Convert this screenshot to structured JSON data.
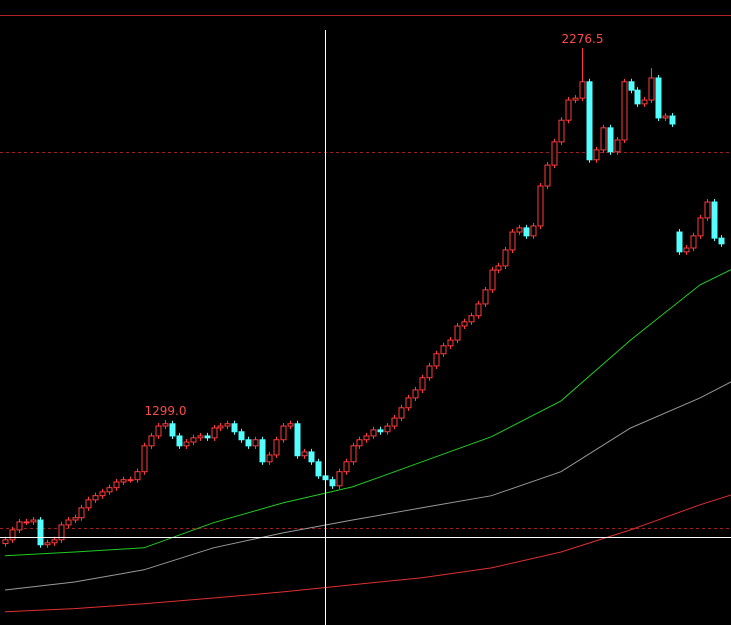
{
  "chart_data": {
    "type": "candlestick",
    "ylim": [
      760,
      2403
    ],
    "up_color": "#ff3c3c",
    "down_color": "#54ffff",
    "label_color": "#ff4a4a",
    "open": [
      974,
      984,
      1010,
      1031,
      1031,
      1036,
      971,
      976,
      984,
      1023,
      1036,
      1042,
      1068,
      1089,
      1100,
      1110,
      1121,
      1136,
      1142,
      1142,
      1163,
      1231,
      1257,
      1283,
      1289,
      1257,
      1231,
      1241,
      1252,
      1257,
      1252,
      1278,
      1283,
      1289,
      1268,
      1247,
      1231,
      1247,
      1189,
      1207,
      1247,
      1283,
      1289,
      1205,
      1215,
      1189,
      1152,
      1142,
      1126,
      1163,
      1189,
      1231,
      1247,
      1257,
      1273,
      1268,
      1283,
      1304,
      1331,
      1357,
      1378,
      1410,
      1441,
      1473,
      1494,
      1509,
      1546,
      1557,
      1573,
      1604,
      1641,
      1693,
      1704,
      1746,
      1793,
      1804,
      1783,
      1809,
      1914,
      1969,
      2030,
      2087,
      2140,
      2145,
      2188,
      1983,
      2009,
      2067,
      2004,
      2035,
      2188,
      2166,
      2130,
      2140,
      2198,
      2093,
      2098,
      1793,
      1741,
      1751,
      1783,
      1830,
      1872,
      1777
    ],
    "high": [
      992,
      1018,
      1039,
      1039,
      1044,
      1044,
      984,
      992,
      1031,
      1044,
      1050,
      1076,
      1097,
      1108,
      1118,
      1129,
      1144,
      1150,
      1150,
      1171,
      1239,
      1265,
      1291,
      1299,
      1297,
      1265,
      1249,
      1260,
      1265,
      1265,
      1286,
      1291,
      1297,
      1297,
      1276,
      1255,
      1255,
      1255,
      1215,
      1255,
      1291,
      1297,
      1297,
      1223,
      1223,
      1197,
      1160,
      1150,
      1171,
      1197,
      1239,
      1255,
      1265,
      1281,
      1281,
      1291,
      1312,
      1339,
      1365,
      1386,
      1418,
      1449,
      1481,
      1502,
      1517,
      1554,
      1565,
      1581,
      1612,
      1649,
      1701,
      1712,
      1754,
      1801,
      1812,
      1812,
      1817,
      1922,
      1977,
      2038,
      2095,
      2148,
      2153,
      2276.5,
      2196,
      2017,
      2075,
      2075,
      2043,
      2196,
      2196,
      2174,
      2148,
      2224,
      2206,
      2106,
      2106,
      1801,
      1759,
      1791,
      1838,
      1880,
      1880,
      1785
    ],
    "low": [
      966,
      976,
      1002,
      1023,
      1023,
      963,
      963,
      968,
      976,
      1015,
      1028,
      1034,
      1060,
      1081,
      1092,
      1102,
      1113,
      1128,
      1134,
      1134,
      1155,
      1223,
      1249,
      1275,
      1249,
      1223,
      1223,
      1233,
      1244,
      1244,
      1244,
      1270,
      1275,
      1260,
      1239,
      1223,
      1223,
      1181,
      1181,
      1199,
      1239,
      1275,
      1197,
      1197,
      1181,
      1144,
      1134,
      1118,
      1118,
      1155,
      1181,
      1223,
      1239,
      1249,
      1260,
      1260,
      1275,
      1296,
      1323,
      1349,
      1370,
      1402,
      1433,
      1465,
      1486,
      1501,
      1538,
      1549,
      1565,
      1596,
      1633,
      1685,
      1696,
      1738,
      1785,
      1775,
      1775,
      1801,
      1906,
      1961,
      2022,
      2079,
      2132,
      2137,
      1975,
      1975,
      2001,
      1996,
      1996,
      2027,
      2158,
      2122,
      2122,
      2132,
      2085,
      2085,
      2069,
      1733,
      1733,
      1743,
      1775,
      1822,
      1769,
      1754
    ],
    "close": [
      984,
      1010,
      1031,
      1031,
      1036,
      971,
      976,
      984,
      1023,
      1036,
      1042,
      1068,
      1089,
      1100,
      1110,
      1121,
      1136,
      1142,
      1142,
      1163,
      1231,
      1257,
      1283,
      1289,
      1257,
      1231,
      1241,
      1252,
      1257,
      1252,
      1278,
      1283,
      1289,
      1268,
      1247,
      1231,
      1247,
      1189,
      1207,
      1247,
      1283,
      1289,
      1205,
      1215,
      1189,
      1152,
      1142,
      1126,
      1163,
      1189,
      1231,
      1247,
      1257,
      1273,
      1268,
      1283,
      1304,
      1331,
      1357,
      1378,
      1410,
      1441,
      1473,
      1494,
      1509,
      1546,
      1557,
      1573,
      1604,
      1641,
      1693,
      1704,
      1746,
      1793,
      1804,
      1783,
      1809,
      1914,
      1969,
      2030,
      2087,
      2140,
      2145,
      2188,
      1983,
      2009,
      2067,
      2004,
      2035,
      2188,
      2166,
      2130,
      2140,
      2198,
      2093,
      2098,
      2077,
      1741,
      1751,
      1783,
      1830,
      1872,
      1777,
      1762
    ],
    "high_labels": [
      null,
      null,
      null,
      null,
      null,
      null,
      null,
      null,
      null,
      null,
      null,
      null,
      null,
      null,
      null,
      null,
      null,
      null,
      null,
      null,
      null,
      null,
      null,
      "1299.0",
      null,
      null,
      null,
      null,
      null,
      null,
      null,
      null,
      null,
      null,
      null,
      null,
      null,
      null,
      null,
      null,
      null,
      null,
      null,
      null,
      null,
      null,
      null,
      null,
      null,
      null,
      null,
      null,
      null,
      null,
      null,
      null,
      null,
      null,
      null,
      null,
      null,
      null,
      null,
      null,
      null,
      null,
      null,
      null,
      null,
      null,
      null,
      null,
      null,
      null,
      null,
      null,
      null,
      null,
      null,
      null,
      null,
      null,
      null,
      "2276.5",
      null,
      null,
      null,
      null,
      null,
      null,
      null,
      null,
      null,
      null,
      null,
      null,
      null,
      null,
      null,
      null,
      null,
      null,
      null,
      null
    ],
    "moving_averages": [
      {
        "color": "#22cc22",
        "x": [
          0,
          10,
          20,
          30,
          40,
          50,
          60,
          70,
          80,
          90,
          100,
          105
        ],
        "values": [
          942,
          952,
          963,
          1029,
          1081,
          1123,
          1189,
          1255,
          1349,
          1509,
          1654,
          1699
        ]
      },
      {
        "color": "#9a9a9a",
        "x": [
          0,
          10,
          20,
          30,
          40,
          50,
          60,
          70,
          80,
          90,
          100,
          105
        ],
        "values": [
          852,
          873,
          905,
          963,
          1002,
          1036,
          1068,
          1100,
          1163,
          1278,
          1357,
          1404
        ]
      },
      {
        "color": "#e03030",
        "x": [
          0,
          10,
          20,
          30,
          40,
          50,
          60,
          70,
          80,
          90,
          100,
          105
        ],
        "values": [
          795,
          803,
          816,
          831,
          847,
          866,
          884,
          910,
          952,
          1010,
          1076,
          1105
        ]
      }
    ]
  }
}
